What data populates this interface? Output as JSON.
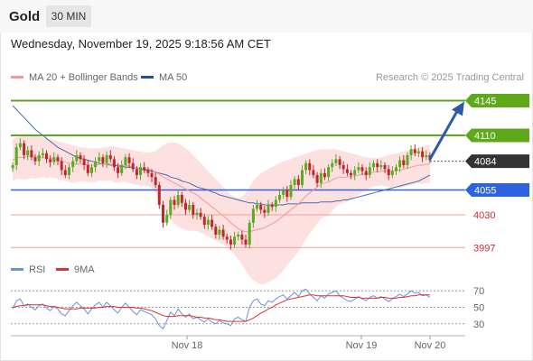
{
  "header": {
    "asset": "Gold",
    "timeframe": "30 MIN"
  },
  "datetime": "Wednesday, November 19, 2025 9:18:56 AM CET",
  "legend": {
    "ma20_label": "MA 20 + Bollinger Bands",
    "ma50_label": "MA 50",
    "rsi_label": "RSI",
    "ma9_label": "9MA"
  },
  "credit": "Research © 2025 Trading Central",
  "colors": {
    "up": "#5aaa22",
    "down": "#c3262a",
    "ma20": "#ec9b9b",
    "ma50": "#4a6ab0",
    "band_fill": "#fde1e1",
    "resistance": "#5ea81a",
    "support_blue": "#2d62e0",
    "support_red": "#d52b2b",
    "current": "#333333",
    "arrow": "#2b5aa6",
    "rsi": "#6f8fd8",
    "ma9": "#e03030"
  },
  "chart_data": [
    {
      "type": "candlestick",
      "title": "Gold",
      "x_axis_labels": [
        "Nov 18",
        "Nov 19",
        "Nov 20"
      ],
      "ylim": [
        3990,
        4160
      ],
      "price_levels": [
        {
          "label": "4145",
          "value": 4145,
          "kind": "resistance"
        },
        {
          "label": "4110",
          "value": 4110,
          "kind": "resistance"
        },
        {
          "label": "4084",
          "value": 4084,
          "kind": "current"
        },
        {
          "label": "4055",
          "value": 4055,
          "kind": "support"
        },
        {
          "label": "4030",
          "value": 4030,
          "kind": "support"
        },
        {
          "label": "3997",
          "value": 3997,
          "kind": "support"
        }
      ],
      "close": [
        4080,
        4098,
        4102,
        4090,
        4095,
        4088,
        4084,
        4090,
        4092,
        4086,
        4083,
        4088,
        4084,
        4075,
        4070,
        4078,
        4084,
        4090,
        4086,
        4080,
        4072,
        4078,
        4084,
        4088,
        4082,
        4090,
        4086,
        4078,
        4072,
        4080,
        4088,
        4082,
        4076,
        4070,
        4078,
        4075,
        4072,
        4068,
        4060,
        4040,
        4022,
        4030,
        4045,
        4040,
        4050,
        4042,
        4035,
        4040,
        4030,
        4032,
        4028,
        4020,
        4025,
        4018,
        4010,
        4015,
        4008,
        4005,
        4000,
        4008,
        4010,
        4005,
        4000,
        4022,
        4036,
        4040,
        4035,
        4032,
        4040,
        4038,
        4045,
        4050,
        4055,
        4048,
        4060,
        4066,
        4060,
        4075,
        4082,
        4075,
        4070,
        4062,
        4072,
        4068,
        4078,
        4082,
        4086,
        4080,
        4076,
        4072,
        4070,
        4075,
        4078,
        4074,
        4070,
        4078,
        4082,
        4078,
        4080,
        4076,
        4070,
        4074,
        4078,
        4085,
        4080,
        4090,
        4096,
        4092,
        4094,
        4088,
        4090,
        4086
      ],
      "ma20": [
        4085,
        4087,
        4088,
        4088,
        4089,
        4089,
        4088,
        4088,
        4088,
        4087,
        4087,
        4086,
        4085,
        4084,
        4083,
        4082,
        4081,
        4081,
        4081,
        4081,
        4080,
        4080,
        4080,
        4081,
        4081,
        4081,
        4082,
        4081,
        4080,
        4080,
        4080,
        4079,
        4078,
        4077,
        4077,
        4076,
        4076,
        4075,
        4073,
        4071,
        4068,
        4066,
        4064,
        4062,
        4060,
        4058,
        4056,
        4054,
        4052,
        4050,
        4047,
        4044,
        4041,
        4038,
        4035,
        4032,
        4029,
        4026,
        4022,
        4019,
        4016,
        4014,
        4013,
        4013,
        4014,
        4015,
        4016,
        4017,
        4019,
        4021,
        4023,
        4026,
        4029,
        4032,
        4035,
        4038,
        4041,
        4045,
        4049,
        4052,
        4055,
        4058,
        4061,
        4062,
        4063,
        4065,
        4067,
        4068,
        4068,
        4068,
        4069,
        4069,
        4070,
        4071,
        4071,
        4072,
        4073,
        4073,
        4074,
        4074,
        4074,
        4074,
        4075,
        4075,
        4076,
        4077,
        4078,
        4079,
        4080,
        4080,
        4081,
        4081
      ],
      "bb_upper": [
        4106,
        4108,
        4110,
        4111,
        4111,
        4111,
        4110,
        4109,
        4108,
        4107,
        4106,
        4105,
        4104,
        4103,
        4102,
        4101,
        4100,
        4099,
        4098,
        4098,
        4097,
        4097,
        4097,
        4097,
        4098,
        4098,
        4099,
        4099,
        4098,
        4097,
        4097,
        4096,
        4095,
        4094,
        4094,
        4093,
        4093,
        4093,
        4094,
        4097,
        4100,
        4102,
        4103,
        4103,
        4102,
        4100,
        4097,
        4094,
        4090,
        4086,
        4082,
        4078,
        4074,
        4070,
        4066,
        4062,
        4058,
        4054,
        4050,
        4048,
        4047,
        4048,
        4052,
        4058,
        4064,
        4068,
        4072,
        4074,
        4076,
        4078,
        4080,
        4082,
        4084,
        4085,
        4086,
        4088,
        4089,
        4090,
        4092,
        4093,
        4094,
        4095,
        4096,
        4096,
        4096,
        4096,
        4096,
        4095,
        4094,
        4093,
        4092,
        4091,
        4090,
        4089,
        4088,
        4087,
        4087,
        4087,
        4088,
        4089,
        4090,
        4091,
        4092,
        4093,
        4094,
        4095,
        4096,
        4097,
        4098,
        4099,
        4100,
        4100
      ],
      "bb_lower": [
        4064,
        4066,
        4066,
        4065,
        4066,
        4067,
        4066,
        4067,
        4068,
        4067,
        4068,
        4067,
        4066,
        4065,
        4064,
        4063,
        4062,
        4063,
        4064,
        4064,
        4063,
        4063,
        4063,
        4065,
        4064,
        4064,
        4065,
        4063,
        4062,
        4063,
        4063,
        4062,
        4061,
        4060,
        4060,
        4059,
        4059,
        4057,
        4052,
        4045,
        4036,
        4030,
        4025,
        4021,
        4018,
        4016,
        4015,
        4014,
        4014,
        4014,
        4012,
        4010,
        4008,
        4006,
        4004,
        4002,
        4000,
        3998,
        3994,
        3990,
        3985,
        3980,
        3974,
        3968,
        3964,
        3962,
        3960,
        3960,
        3962,
        3964,
        3966,
        3970,
        3974,
        3979,
        3984,
        3988,
        3993,
        4000,
        4006,
        4011,
        4016,
        4021,
        4026,
        4028,
        4030,
        4034,
        4038,
        4041,
        4042,
        4043,
        4046,
        4047,
        4050,
        4053,
        4054,
        4057,
        4059,
        4059,
        4060,
        4059,
        4058,
        4057,
        4058,
        4057,
        4058,
        4059,
        4060,
        4061,
        4062,
        4061,
        4062,
        4062
      ],
      "ma50": [
        4140,
        4136,
        4132,
        4128,
        4124,
        4120,
        4116,
        4113,
        4110,
        4107,
        4104,
        4101,
        4098,
        4096,
        4094,
        4092,
        4090,
        4088,
        4087,
        4086,
        4085,
        4084,
        4083,
        4082,
        4081,
        4081,
        4080,
        4080,
        4079,
        4079,
        4078,
        4078,
        4077,
        4077,
        4076,
        4075,
        4075,
        4074,
        4073,
        4072,
        4071,
        4070,
        4068,
        4067,
        4066,
        4064,
        4063,
        4062,
        4060,
        4058,
        4057,
        4056,
        4055,
        4053,
        4052,
        4050,
        4049,
        4048,
        4047,
        4046,
        4045,
        4044,
        4043,
        4042,
        4042,
        4041,
        4041,
        4040,
        4040,
        4040,
        4040,
        4040,
        4040,
        4041,
        4041,
        4041,
        4041,
        4042,
        4042,
        4042,
        4042,
        4042,
        4043,
        4043,
        4043,
        4043,
        4044,
        4044,
        4045,
        4045,
        4046,
        4047,
        4048,
        4049,
        4050,
        4051,
        4052,
        4053,
        4054,
        4055,
        4056,
        4057,
        4058,
        4059,
        4060,
        4061,
        4062,
        4063,
        4064,
        4066,
        4068,
        4070
      ]
    },
    {
      "type": "line",
      "title": "RSI",
      "ylim": [
        20,
        80
      ],
      "y_ticks": [
        30,
        50,
        70
      ],
      "reference_lines": [
        70,
        50,
        30
      ],
      "x_axis_labels": [
        "Nov 18",
        "Nov 19",
        "Nov 20"
      ],
      "series": [
        {
          "name": "RSI",
          "values": [
            48,
            58,
            60,
            52,
            54,
            50,
            47,
            52,
            54,
            49,
            46,
            51,
            48,
            42,
            40,
            46,
            52,
            56,
            52,
            48,
            42,
            48,
            53,
            56,
            50,
            56,
            52,
            47,
            43,
            50,
            55,
            50,
            45,
            41,
            47,
            45,
            43,
            41,
            36,
            28,
            24,
            34,
            44,
            40,
            48,
            42,
            38,
            42,
            36,
            38,
            35,
            32,
            36,
            32,
            30,
            34,
            31,
            30,
            28,
            36,
            38,
            35,
            33,
            50,
            58,
            60,
            54,
            52,
            58,
            56,
            60,
            63,
            65,
            60,
            64,
            68,
            63,
            70,
            72,
            66,
            62,
            58,
            64,
            61,
            66,
            68,
            70,
            64,
            61,
            58,
            57,
            60,
            63,
            60,
            58,
            62,
            64,
            61,
            63,
            60,
            57,
            60,
            63,
            66,
            63,
            66,
            70,
            67,
            68,
            64,
            65,
            62
          ]
        },
        {
          "name": "9MA",
          "values": [
            50,
            51,
            52,
            52,
            53,
            53,
            53,
            53,
            53,
            52,
            51,
            51,
            50,
            49,
            48,
            48,
            48,
            48,
            49,
            49,
            49,
            49,
            49,
            50,
            50,
            51,
            51,
            51,
            50,
            50,
            50,
            50,
            50,
            49,
            49,
            48,
            47,
            46,
            44,
            42,
            40,
            39,
            39,
            39,
            40,
            40,
            40,
            40,
            39,
            38,
            38,
            37,
            37,
            36,
            35,
            35,
            34,
            33,
            33,
            33,
            33,
            33,
            33,
            35,
            37,
            40,
            43,
            45,
            48,
            50,
            53,
            55,
            57,
            59,
            60,
            61,
            62,
            63,
            64,
            65,
            65,
            64,
            64,
            64,
            64,
            64,
            64,
            64,
            64,
            63,
            62,
            62,
            62,
            61,
            61,
            61,
            61,
            61,
            62,
            62,
            61,
            61,
            61,
            62,
            62,
            63,
            64,
            64,
            65,
            65,
            65,
            65
          ]
        }
      ]
    }
  ]
}
